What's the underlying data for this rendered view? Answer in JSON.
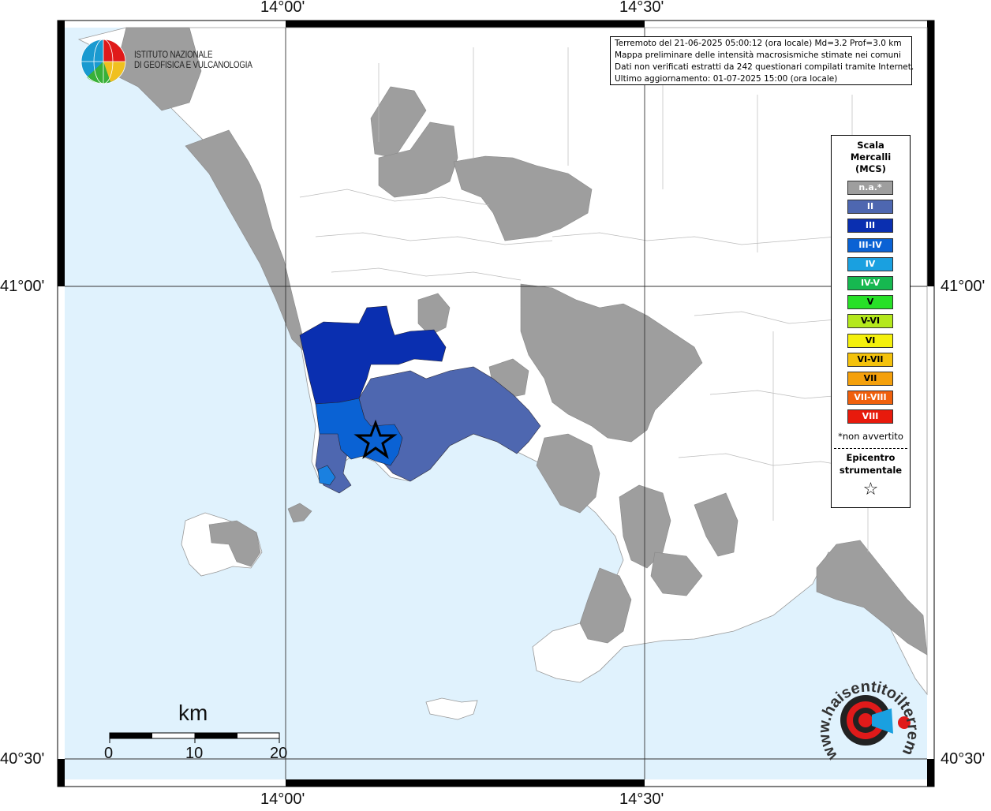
{
  "map": {
    "longitude_ticks": [
      "14°00'",
      "14°30'"
    ],
    "latitude_ticks": [
      "41°00'",
      "40°30'"
    ]
  },
  "info": {
    "line1": "Terremoto del 21-06-2025 05:00:12 (ora locale) Md=3.2 Prof=3.0 km",
    "line2": "Mappa preliminare delle intensità macrosismiche stimate nei comuni",
    "line3": "Dati non verificati estratti da 242 questionari compilati tramite Internet.",
    "line4": "Ultimo aggiornamento: 01-07-2025 15:00 (ora locale)"
  },
  "logo": {
    "line1": "ISTITUTO NAZIONALE",
    "line2": "DI GEOFISICA E VULCANOLOGIA"
  },
  "legend": {
    "title1": "Scala",
    "title2": "Mercalli",
    "title3": "(MCS)",
    "items": [
      {
        "label": "n.a.*",
        "color": "#9e9e9e"
      },
      {
        "label": "II",
        "color": "#4e67b0"
      },
      {
        "label": "III",
        "color": "#0a2fb0"
      },
      {
        "label": "III-IV",
        "color": "#0a62d4"
      },
      {
        "label": "IV",
        "color": "#1aa0e0"
      },
      {
        "label": "IV-V",
        "color": "#16b850"
      },
      {
        "label": "V",
        "color": "#28e028"
      },
      {
        "label": "V-VI",
        "color": "#b4e81c"
      },
      {
        "label": "VI",
        "color": "#f4f00c"
      },
      {
        "label": "VI-VII",
        "color": "#f4c20c"
      },
      {
        "label": "VII",
        "color": "#f4a00c"
      },
      {
        "label": "VII-VIII",
        "color": "#f0600c"
      },
      {
        "label": "VIII",
        "color": "#e81a0c"
      }
    ],
    "note": "*non avvertito",
    "epicenter1": "Epicentro",
    "epicenter2": "strumentale",
    "star": "☆"
  },
  "scalebar": {
    "unit": "km",
    "ticks": [
      "0",
      "10",
      "20"
    ]
  },
  "watermark": {
    "site": "www.haisentitoilterremoto.it"
  },
  "colors": {
    "sea": "#e0f2fd",
    "land": "#ffffff",
    "not_available": "#9e9e9e",
    "intensity_II": "#4e67b0",
    "intensity_III": "#0a2fb0",
    "intensity_III_IV": "#0a62d4"
  }
}
